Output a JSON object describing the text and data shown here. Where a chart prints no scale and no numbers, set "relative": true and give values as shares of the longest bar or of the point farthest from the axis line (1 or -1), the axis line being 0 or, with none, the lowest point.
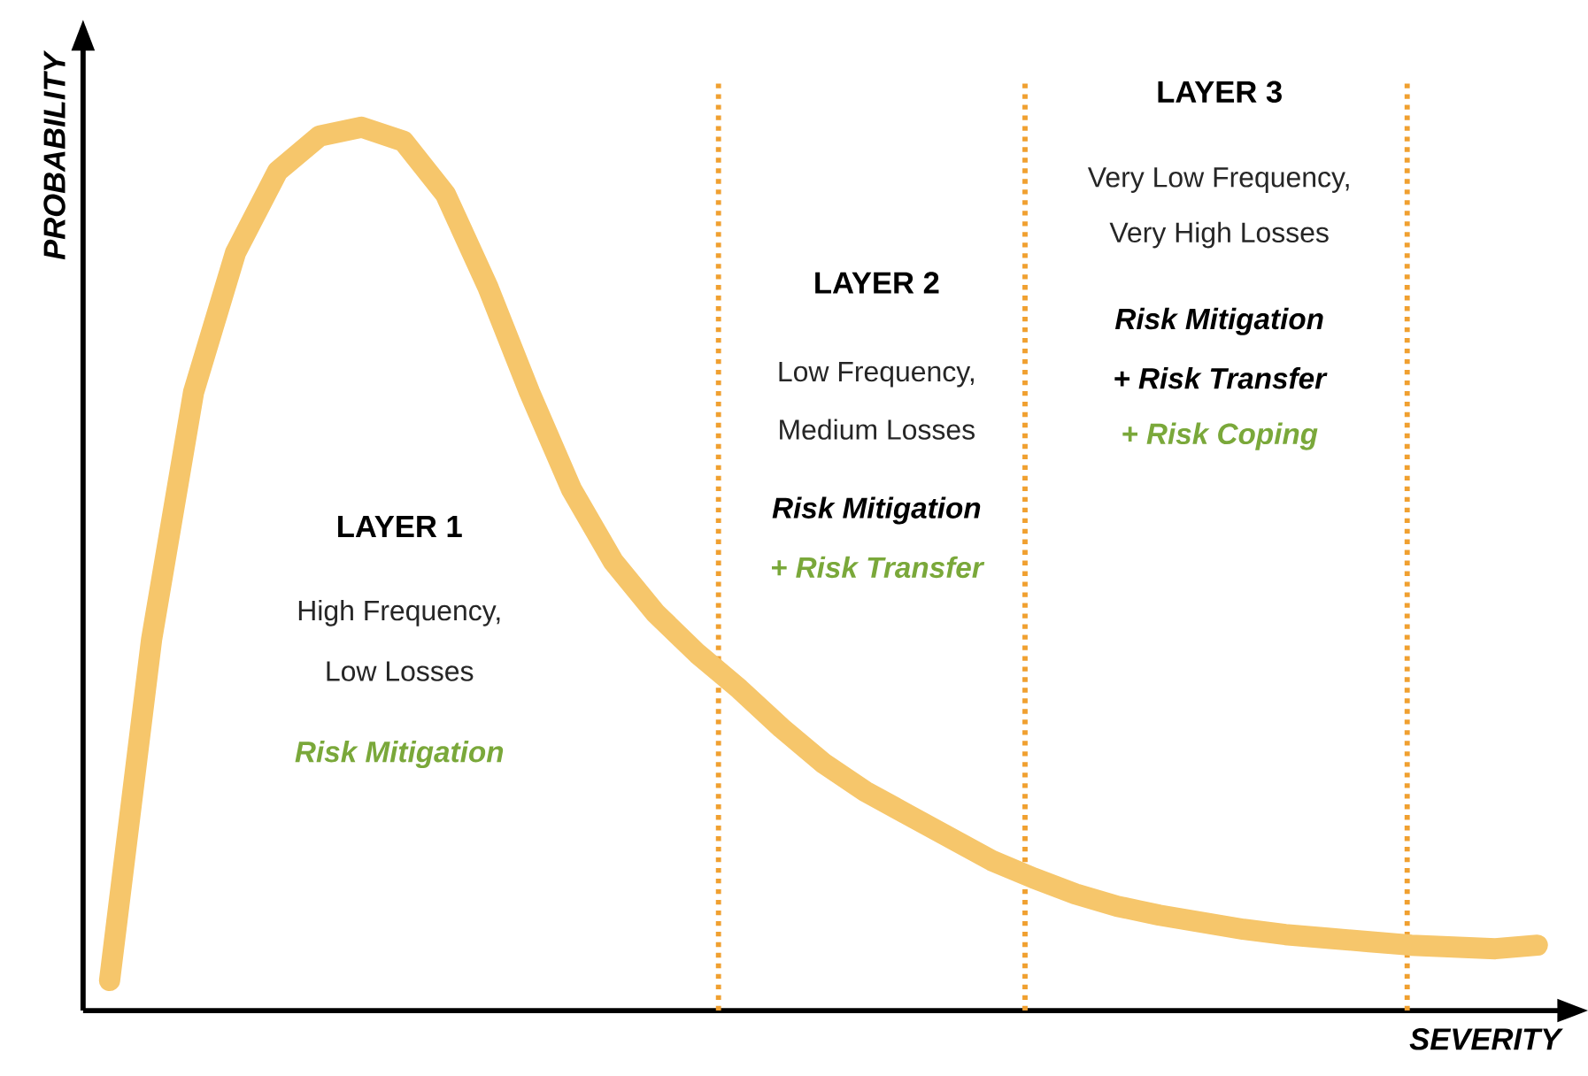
{
  "chart_data": {
    "type": "line",
    "relative": true,
    "xlabel": "SEVERITY",
    "ylabel": "PROBABILITY",
    "marker": "none",
    "line_style": "solid",
    "categories": [
      null,
      null,
      null,
      null,
      null,
      null,
      null,
      null,
      null,
      null,
      null,
      null,
      null,
      null,
      null,
      null,
      null,
      null,
      null,
      null,
      null,
      null,
      null,
      null,
      null,
      null,
      null,
      null,
      null,
      null,
      null,
      null,
      null,
      null,
      null
    ],
    "series": [
      {
        "color": "#f6c66b",
        "values": [
          0.034,
          0.42,
          0.7,
          0.858,
          0.95,
          0.99,
          1.0,
          0.984,
          0.924,
          0.82,
          0.7,
          0.59,
          0.508,
          0.45,
          0.404,
          0.364,
          0.32,
          0.28,
          0.248,
          0.222,
          0.196,
          0.17,
          0.15,
          0.132,
          0.118,
          0.108,
          0.1,
          0.092,
          0.086,
          0.082,
          0.078,
          0.074,
          0.072,
          0.07,
          0.074
        ]
      }
    ],
    "annotations": [
      "LAYER 1",
      "High Frequency,",
      "Low Losses",
      "Risk Mitigation",
      "LAYER 2",
      "Low Frequency,",
      "Medium Losses",
      "Risk Mitigation",
      "+ Risk Transfer",
      "LAYER 3",
      "Very Low Frequency,",
      "Very High Losses",
      "Risk Mitigation",
      "+ Risk Transfer",
      "+ Risk Coping"
    ]
  }
}
